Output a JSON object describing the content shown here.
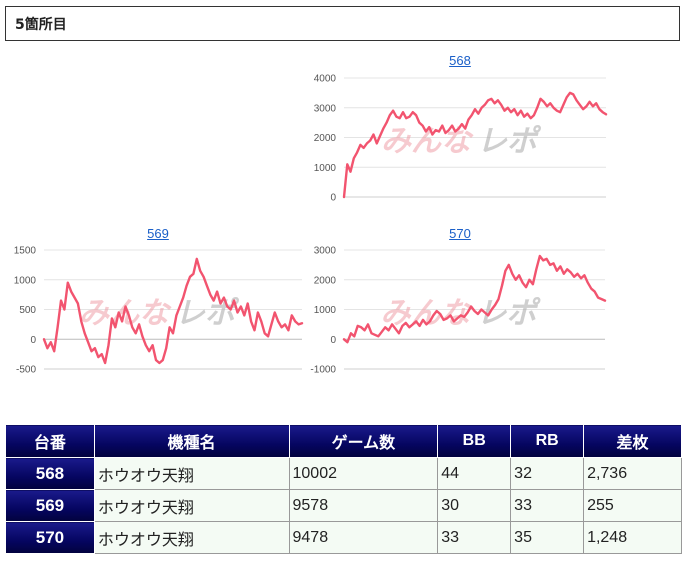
{
  "section": {
    "title": "5箇所目"
  },
  "watermark": {
    "text_left": "みんな",
    "text_right": "レポ"
  },
  "chart_data": [
    {
      "type": "line",
      "title": "568",
      "color": "#f2546f",
      "ylim": [
        0,
        4000
      ],
      "yticks": [
        0,
        1000,
        2000,
        3000,
        4000
      ],
      "x": [
        0,
        10,
        20,
        30,
        40,
        50,
        60,
        70,
        80,
        90,
        100,
        110,
        120,
        130,
        140,
        150,
        160,
        170,
        180,
        190,
        200,
        210,
        220,
        230,
        240,
        250,
        260,
        270,
        280,
        290,
        300,
        310,
        320,
        330,
        340,
        350,
        360,
        370,
        380,
        390,
        400,
        410,
        420,
        430,
        440,
        450,
        460,
        470,
        480,
        490,
        500,
        510,
        520,
        530,
        540,
        550,
        560,
        570,
        580,
        590,
        600,
        610,
        620,
        630,
        640,
        650,
        660,
        670,
        680,
        690,
        700,
        710,
        720,
        730,
        740,
        750,
        760,
        770,
        780,
        790,
        800
      ],
      "y": [
        0,
        1100,
        850,
        1300,
        1500,
        1750,
        1650,
        1800,
        1900,
        2100,
        1800,
        2050,
        2300,
        2500,
        2750,
        2900,
        2700,
        2650,
        2850,
        2650,
        2700,
        2850,
        2750,
        2500,
        2400,
        2200,
        2350,
        2100,
        2250,
        2200,
        2400,
        2150,
        2250,
        2400,
        2200,
        2300,
        2450,
        2300,
        2600,
        2750,
        2950,
        2800,
        3000,
        3100,
        3250,
        3300,
        3150,
        3250,
        3100,
        2900,
        3000,
        2850,
        2950,
        2750,
        2900,
        2700,
        2800,
        2650,
        2750,
        3000,
        3300,
        3200,
        3050,
        3150,
        3000,
        2900,
        2850,
        3100,
        3350,
        3500,
        3450,
        3250,
        3100,
        2950,
        3050,
        3200,
        3050,
        3150,
        2950,
        2850,
        2780
      ]
    },
    {
      "type": "line",
      "title": "569",
      "color": "#f2546f",
      "ylim": [
        -500,
        1500
      ],
      "yticks": [
        -500,
        0,
        500,
        1000,
        1500
      ],
      "x": [
        0,
        10,
        20,
        30,
        40,
        50,
        60,
        70,
        80,
        90,
        100,
        110,
        120,
        130,
        140,
        150,
        160,
        170,
        180,
        190,
        200,
        210,
        220,
        230,
        240,
        250,
        260,
        270,
        280,
        290,
        300,
        310,
        320,
        330,
        340,
        350,
        360,
        370,
        380,
        390,
        400,
        410,
        420,
        430,
        440,
        450,
        460,
        470,
        480,
        490,
        500,
        510,
        520,
        530,
        540,
        550,
        560,
        570,
        580,
        590,
        600,
        610,
        620,
        630,
        640,
        650,
        660,
        670,
        680,
        690,
        700,
        710,
        720,
        730,
        740,
        750,
        760
      ],
      "y": [
        0,
        -150,
        -50,
        -200,
        200,
        650,
        500,
        950,
        800,
        700,
        600,
        300,
        100,
        -50,
        -200,
        -150,
        -300,
        -250,
        -400,
        -100,
        350,
        200,
        450,
        300,
        550,
        400,
        200,
        100,
        250,
        50,
        -100,
        -200,
        -100,
        -350,
        -400,
        -350,
        -150,
        200,
        100,
        400,
        550,
        700,
        900,
        1050,
        1100,
        1350,
        1150,
        1050,
        900,
        750,
        650,
        800,
        600,
        700,
        550,
        500,
        650,
        450,
        550,
        400,
        600,
        300,
        150,
        450,
        300,
        100,
        50,
        250,
        450,
        300,
        200,
        250,
        150,
        400,
        300,
        250,
        270
      ]
    },
    {
      "type": "line",
      "title": "570",
      "color": "#f2546f",
      "ylim": [
        -1000,
        3000
      ],
      "yticks": [
        -1000,
        0,
        1000,
        2000,
        3000
      ],
      "x": [
        0,
        10,
        20,
        30,
        40,
        50,
        60,
        70,
        80,
        90,
        100,
        110,
        120,
        130,
        140,
        150,
        160,
        170,
        180,
        190,
        200,
        210,
        220,
        230,
        240,
        250,
        260,
        270,
        280,
        290,
        300,
        310,
        320,
        330,
        340,
        350,
        360,
        370,
        380,
        390,
        400,
        410,
        420,
        430,
        440,
        450,
        460,
        470,
        480,
        490,
        500,
        510,
        520,
        530,
        540,
        550,
        560,
        570,
        580,
        590,
        600,
        610,
        620,
        630,
        640,
        650,
        660,
        670,
        680,
        690,
        700,
        710,
        720,
        730,
        740,
        750,
        760
      ],
      "y": [
        0,
        -100,
        200,
        100,
        450,
        400,
        300,
        500,
        200,
        150,
        100,
        250,
        400,
        300,
        500,
        350,
        200,
        450,
        550,
        400,
        500,
        600,
        450,
        650,
        500,
        600,
        800,
        950,
        850,
        650,
        700,
        800,
        600,
        700,
        800,
        750,
        900,
        1100,
        950,
        850,
        1000,
        900,
        800,
        1000,
        1150,
        1350,
        1800,
        2300,
        2500,
        2200,
        2000,
        2150,
        1900,
        1750,
        2000,
        1850,
        2350,
        2800,
        2650,
        2700,
        2500,
        2550,
        2300,
        2450,
        2200,
        2350,
        2250,
        2100,
        2200,
        2050,
        2150,
        1900,
        1700,
        1600,
        1400,
        1350,
        1300
      ]
    }
  ],
  "table": {
    "headers": [
      "台番",
      "機種名",
      "ゲーム数",
      "BB",
      "RB",
      "差枚"
    ],
    "rows": [
      {
        "id": "568",
        "machine": "ホウオウ天翔",
        "games": "10002",
        "bb": "44",
        "rb": "32",
        "diff": "2,736"
      },
      {
        "id": "569",
        "machine": "ホウオウ天翔",
        "games": "9578",
        "bb": "30",
        "rb": "33",
        "diff": "255"
      },
      {
        "id": "570",
        "machine": "ホウオウ天翔",
        "games": "9478",
        "bb": "33",
        "rb": "35",
        "diff": "1,248"
      }
    ]
  }
}
